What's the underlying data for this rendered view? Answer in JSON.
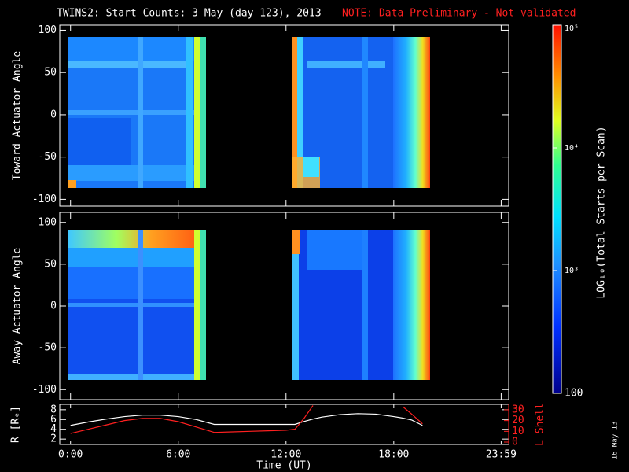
{
  "chart_data": {
    "type": "heatmap",
    "title": "TWINS2: Start Counts:  3 May (day 123), 2013",
    "note": "NOTE: Data Preliminary - Not validated",
    "x_label": "Time (UT)",
    "xlim": [
      -0.6,
      24.4
    ],
    "xticks": [
      {
        "value": 0,
        "label": "0:00"
      },
      {
        "value": 6,
        "label": "6:00"
      },
      {
        "value": 12,
        "label": "12:00"
      },
      {
        "value": 18,
        "label": "18:00"
      },
      {
        "value": 23.98,
        "label": "23:59"
      }
    ],
    "panels": [
      {
        "type": "heatmap",
        "ylabel": "Toward Actuator Angle",
        "ylim": [
          -108,
          106
        ],
        "yticks": [
          -100,
          -50,
          0,
          50,
          100
        ]
      },
      {
        "type": "heatmap",
        "ylabel": "Away Actuator Angle",
        "ylim": [
          -112,
          112
        ],
        "yticks": [
          -100,
          -50,
          0,
          50,
          100
        ]
      },
      {
        "type": "line",
        "ylabel": "R [Rₑ]",
        "ylim": [
          0.9,
          9.1
        ],
        "yticks": [
          2,
          4,
          6,
          8
        ],
        "y2label": "L Shell",
        "y2lim": [
          -2.2,
          35.1
        ],
        "y2ticks": [
          0,
          10,
          20,
          30
        ],
        "x": [
          0,
          1,
          2,
          3,
          4,
          5,
          6,
          7,
          8,
          9,
          10,
          11,
          12,
          12.5,
          13,
          13.5,
          14,
          15,
          16,
          17,
          18,
          18.5,
          19,
          19.6
        ],
        "series": [
          {
            "color": "#ffffff",
            "values": [
              4.8,
              5.5,
              6.1,
              6.6,
              6.9,
              6.9,
              6.6,
              6,
              5,
              5,
              5,
              5,
              5,
              5,
              5.6,
              6.1,
              6.5,
              7,
              7.2,
              7.1,
              6.6,
              6.3,
              5.9,
              4.8
            ]
          },
          {
            "color": "#ff2020",
            "axis": "y2",
            "values": [
              8,
              12,
              16,
              20,
              22,
              22,
              19,
              14,
              9,
              9.5,
              10,
              10.5,
              11,
              12,
              22,
              34,
              null,
              null,
              null,
              null,
              null,
              33,
              26,
              17
            ]
          }
        ]
      }
    ],
    "colorbar": {
      "label": "LOG₁₀(Total Starts per Scan)",
      "log": true,
      "clim": [
        100,
        100000
      ],
      "ticks": [
        {
          "value": 100,
          "label": "100"
        },
        {
          "value": 1000,
          "label": "10³"
        },
        {
          "value": 10000,
          "label": "10⁴"
        },
        {
          "value": 100000,
          "label": "10⁵"
        }
      ]
    },
    "date_stamp": "16 May 13"
  }
}
